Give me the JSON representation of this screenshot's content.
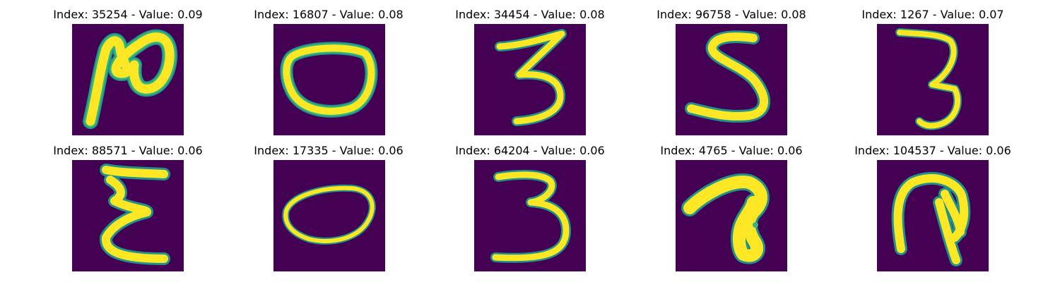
{
  "colors": {
    "background": "#440154",
    "stroke_core": "#fde725",
    "stroke_edge": "#35b779",
    "stroke_halo": "#21918c"
  },
  "panels": [
    {
      "title": "Index: 35254 - Value: 0.09",
      "glyph": "2-like curl"
    },
    {
      "title": "Index: 16807 - Value: 0.08",
      "glyph": "0"
    },
    {
      "title": "Index: 34454 - Value: 0.08",
      "glyph": "3"
    },
    {
      "title": "Index: 96758 - Value: 0.08",
      "glyph": "5"
    },
    {
      "title": "Index: 1267 - Value: 0.07",
      "glyph": "3"
    },
    {
      "title": "Index: 88571 - Value: 0.06",
      "glyph": "sigma-like"
    },
    {
      "title": "Index: 17335 - Value: 0.06",
      "glyph": "0"
    },
    {
      "title": "Index: 64204 - Value: 0.06",
      "glyph": "3"
    },
    {
      "title": "Index: 4765 - Value: 0.06",
      "glyph": "hook"
    },
    {
      "title": "Index: 104537 - Value: 0.06",
      "glyph": "9-like"
    }
  ]
}
